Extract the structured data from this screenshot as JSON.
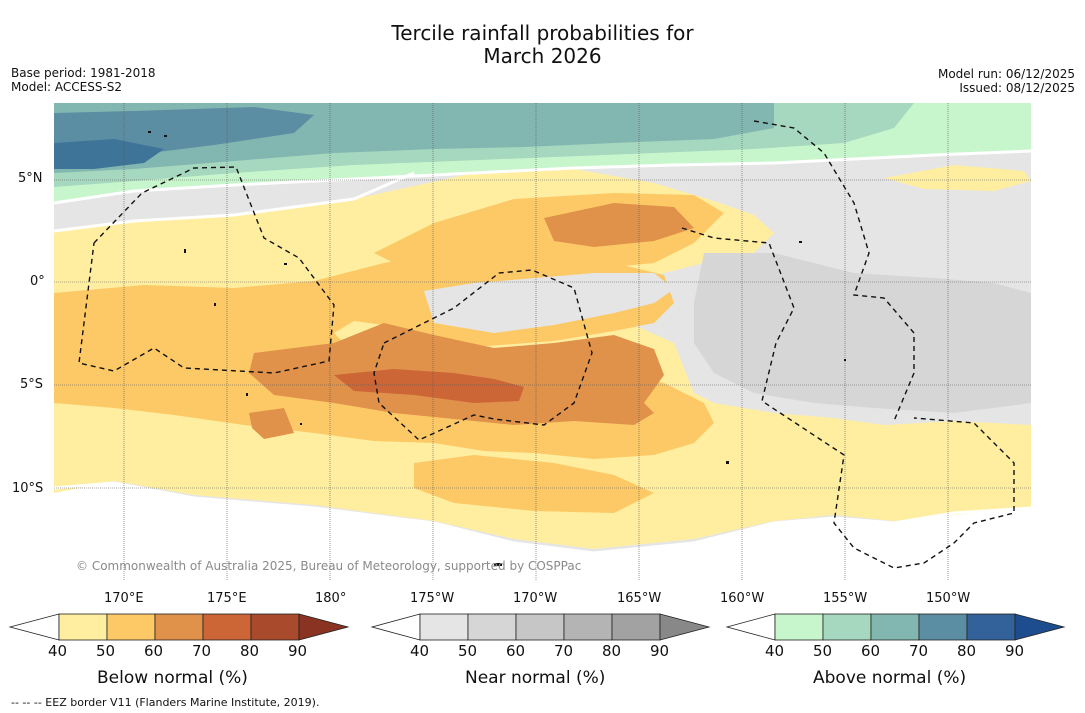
{
  "title": "Tercile rainfall probabilities for\nMarch 2026",
  "base_period": "Base period: 1981-2018",
  "model": "Model: ACCESS-S2",
  "model_run": "Model run: 06/12/2025",
  "issued": "Issued: 08/12/2025",
  "copyright": "© Commonwealth of Australia 2025, Bureau of Meteorology, supported by COSPPac",
  "footnote": "-- -- -- EEZ border V11 (Flanders Marine Institute, 2019).",
  "lat_labels": [
    "5°N",
    "0°",
    "5°S",
    "10°S"
  ],
  "lon_labels": [
    "170°E",
    "175°E",
    "180°",
    "175°W",
    "170°W",
    "165°W",
    "160°W",
    "155°W",
    "150°W"
  ],
  "colorbars": [
    {
      "title": "Below normal (%)",
      "ticks": [
        "40",
        "50",
        "60",
        "70",
        "80",
        "90"
      ],
      "colors": [
        "#ffeea0",
        "#fdc966",
        "#e0924a",
        "#cd6637",
        "#a84a2b",
        "#8a3322"
      ]
    },
    {
      "title": "Near normal (%)",
      "ticks": [
        "40",
        "50",
        "60",
        "70",
        "80",
        "90"
      ],
      "colors": [
        "#e5e5e5",
        "#d6d6d6",
        "#c6c6c6",
        "#b4b4b4",
        "#a2a2a2",
        "#888888"
      ]
    },
    {
      "title": "Above normal (%)",
      "ticks": [
        "40",
        "50",
        "60",
        "70",
        "80",
        "90"
      ],
      "colors": [
        "#c8f6cc",
        "#a6d7bf",
        "#82b7b1",
        "#5b8ea3",
        "#33629a",
        "#1e4d8f"
      ]
    }
  ],
  "colors": {
    "background": "#ffffff",
    "below_50": "#ffeea0",
    "below_60": "#fdc966",
    "below_70": "#e0924a",
    "below_80": "#cd6637",
    "near_50": "#e5e5e5",
    "near_60": "#d6d6d6",
    "above_50": "#c8f6cc",
    "above_60": "#a6d7bf",
    "above_70": "#82b7b1",
    "above_80": "#5b8ea3",
    "above_90": "#3f7499"
  }
}
